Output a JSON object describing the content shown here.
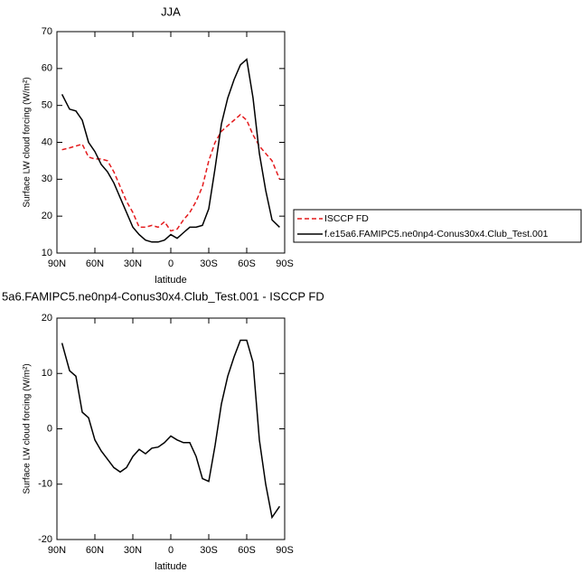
{
  "chart_data": [
    {
      "type": "line",
      "title": "JJA",
      "xlabel": "latitude",
      "ylabel": "Surface LW cloud forcing (W/m²)",
      "x": [
        86,
        80,
        75,
        70,
        65,
        60,
        55,
        50,
        45,
        40,
        35,
        30,
        25,
        20,
        15,
        10,
        5,
        0,
        -5,
        -10,
        -15,
        -20,
        -25,
        -30,
        -35,
        -40,
        -45,
        -50,
        -55,
        -60,
        -65,
        -70,
        -75,
        -80,
        -86
      ],
      "xlim": [
        90,
        -90
      ],
      "xticks": [
        {
          "value": 90,
          "label": "90N"
        },
        {
          "value": 60,
          "label": "60N"
        },
        {
          "value": 30,
          "label": "30N"
        },
        0,
        {
          "value": -30,
          "label": "30S"
        },
        {
          "value": -60,
          "label": "60S"
        },
        {
          "value": -90,
          "label": "90S"
        }
      ],
      "ylim": [
        10,
        70
      ],
      "yticks": [
        10,
        20,
        30,
        40,
        50,
        60,
        70
      ],
      "legend": "right",
      "series": [
        {
          "name": "ISCCP FD",
          "color": "#e41a1c",
          "dashed": true,
          "values": [
            38,
            38.5,
            39,
            39.5,
            36,
            35.5,
            35.5,
            35,
            32,
            28,
            24,
            21,
            17,
            17,
            17.5,
            17,
            18.5,
            16,
            16.5,
            19,
            21,
            24,
            28,
            35,
            40,
            43,
            44.5,
            46,
            47.5,
            46,
            42,
            39,
            37,
            35,
            30
          ]
        },
        {
          "name": "f.e15a6.FAMIPC5.ne0np4-Conus30x4.Club_Test.001",
          "color": "#000000",
          "dashed": false,
          "values": [
            53,
            49,
            48.5,
            46,
            40,
            37.5,
            34,
            32,
            29,
            25,
            21,
            17,
            15,
            13.5,
            13,
            13,
            13.5,
            15,
            14,
            15.5,
            17,
            17,
            17.5,
            22,
            33,
            45,
            52,
            57,
            61,
            62.5,
            52,
            37,
            27,
            19,
            17
          ]
        }
      ]
    },
    {
      "type": "line",
      "title": "5a6.FAMIPC5.ne0np4-Conus30x4.Club_Test.001 - ISCCP FD",
      "xlabel": "latitude",
      "ylabel": "Surface LW cloud forcing (W/m²)",
      "x": [
        86,
        80,
        75,
        70,
        65,
        60,
        55,
        50,
        45,
        40,
        35,
        30,
        25,
        20,
        15,
        10,
        5,
        0,
        -5,
        -10,
        -15,
        -20,
        -25,
        -30,
        -35,
        -40,
        -45,
        -50,
        -55,
        -60,
        -65,
        -70,
        -75,
        -80,
        -86
      ],
      "xlim": [
        90,
        -90
      ],
      "xticks": [
        {
          "value": 90,
          "label": "90N"
        },
        {
          "value": 60,
          "label": "60N"
        },
        {
          "value": 30,
          "label": "30N"
        },
        0,
        {
          "value": -30,
          "label": "30S"
        },
        {
          "value": -60,
          "label": "60S"
        },
        {
          "value": -90,
          "label": "90S"
        }
      ],
      "ylim": [
        -20,
        20
      ],
      "yticks": [
        -20,
        -10,
        0,
        10,
        20
      ],
      "series": [
        {
          "color": "#000000",
          "dashed": false,
          "values": [
            15.5,
            10.5,
            9.5,
            3,
            2,
            -2,
            -4,
            -5.5,
            -7,
            -7.8,
            -7,
            -5,
            -3.7,
            -4.5,
            -3.5,
            -3.3,
            -2.5,
            -1.3,
            -2,
            -2.5,
            -2.5,
            -5,
            -9,
            -9.5,
            -3,
            4.5,
            9.5,
            13,
            16,
            16,
            12,
            -2,
            -10,
            -16,
            -14
          ]
        }
      ]
    }
  ]
}
